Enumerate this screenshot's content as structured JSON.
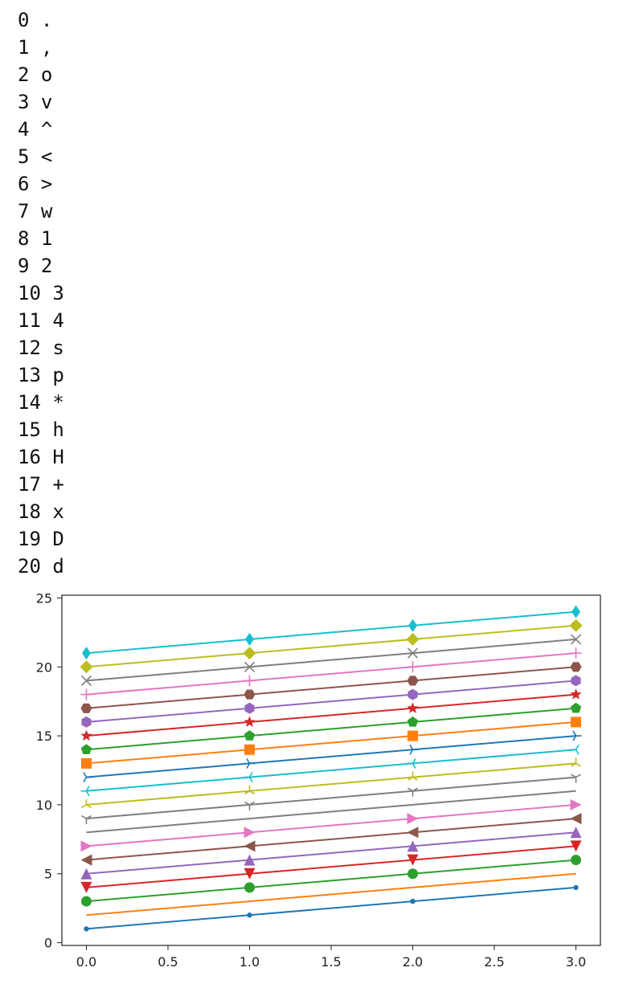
{
  "console": {
    "lines": [
      "0 .",
      "1 ,",
      "2 o",
      "3 v",
      "4 ^",
      "5 <",
      "6 >",
      "7 w",
      "8 1",
      "9 2",
      "10 3",
      "11 4",
      "12 s",
      "13 p",
      "14 *",
      "15 h",
      "16 H",
      "17 +",
      "18 x",
      "19 D",
      "20 d"
    ]
  },
  "chart_data": {
    "type": "line",
    "title": "",
    "xlabel": "",
    "ylabel": "",
    "x": [
      0,
      1,
      2,
      3
    ],
    "xlim": [
      -0.15,
      3.15
    ],
    "ylim": [
      -0.2,
      25.2
    ],
    "xticks": [
      "0.0",
      "0.5",
      "1.0",
      "1.5",
      "2.0",
      "2.5",
      "3.0"
    ],
    "yticks": [
      "0",
      "5",
      "10",
      "15",
      "20",
      "25"
    ],
    "grid": false,
    "legend": "none",
    "series": [
      {
        "marker": ".",
        "color": "#1f77b4",
        "values": [
          1,
          2,
          3,
          4
        ]
      },
      {
        "marker": ",",
        "color": "#ff7f0e",
        "values": [
          2,
          3,
          4,
          5
        ]
      },
      {
        "marker": "o",
        "color": "#2ca02c",
        "values": [
          3,
          4,
          5,
          6
        ]
      },
      {
        "marker": "v",
        "color": "#d62728",
        "values": [
          4,
          5,
          6,
          7
        ]
      },
      {
        "marker": "^",
        "color": "#9467bd",
        "values": [
          5,
          6,
          7,
          8
        ]
      },
      {
        "marker": "<",
        "color": "#8c564b",
        "values": [
          6,
          7,
          8,
          9
        ]
      },
      {
        "marker": ">",
        "color": "#e377c2",
        "values": [
          7,
          8,
          9,
          10
        ]
      },
      {
        "marker": "w",
        "color": "#7f7f7f",
        "values": [
          8,
          9,
          10,
          11
        ]
      },
      {
        "marker": "1",
        "color": "#7f7f7f",
        "values": [
          9,
          10,
          11,
          12
        ]
      },
      {
        "marker": "2",
        "color": "#bcbd22",
        "values": [
          10,
          11,
          12,
          13
        ]
      },
      {
        "marker": "3",
        "color": "#17becf",
        "values": [
          11,
          12,
          13,
          14
        ]
      },
      {
        "marker": "4",
        "color": "#1f77b4",
        "values": [
          12,
          13,
          14,
          15
        ]
      },
      {
        "marker": "s",
        "color": "#ff7f0e",
        "values": [
          13,
          14,
          15,
          16
        ]
      },
      {
        "marker": "p",
        "color": "#2ca02c",
        "values": [
          14,
          15,
          16,
          17
        ]
      },
      {
        "marker": "*",
        "color": "#d62728",
        "values": [
          15,
          16,
          17,
          18
        ]
      },
      {
        "marker": "h",
        "color": "#9467bd",
        "values": [
          16,
          17,
          18,
          19
        ]
      },
      {
        "marker": "H",
        "color": "#8c564b",
        "values": [
          17,
          18,
          19,
          20
        ]
      },
      {
        "marker": "+",
        "color": "#e377c2",
        "values": [
          18,
          19,
          20,
          21
        ]
      },
      {
        "marker": "x",
        "color": "#7f7f7f",
        "values": [
          19,
          20,
          21,
          22
        ]
      },
      {
        "marker": "D",
        "color": "#bcbd22",
        "values": [
          20,
          21,
          22,
          23
        ]
      },
      {
        "marker": "d",
        "color": "#17becf",
        "values": [
          21,
          22,
          23,
          24
        ]
      }
    ]
  }
}
